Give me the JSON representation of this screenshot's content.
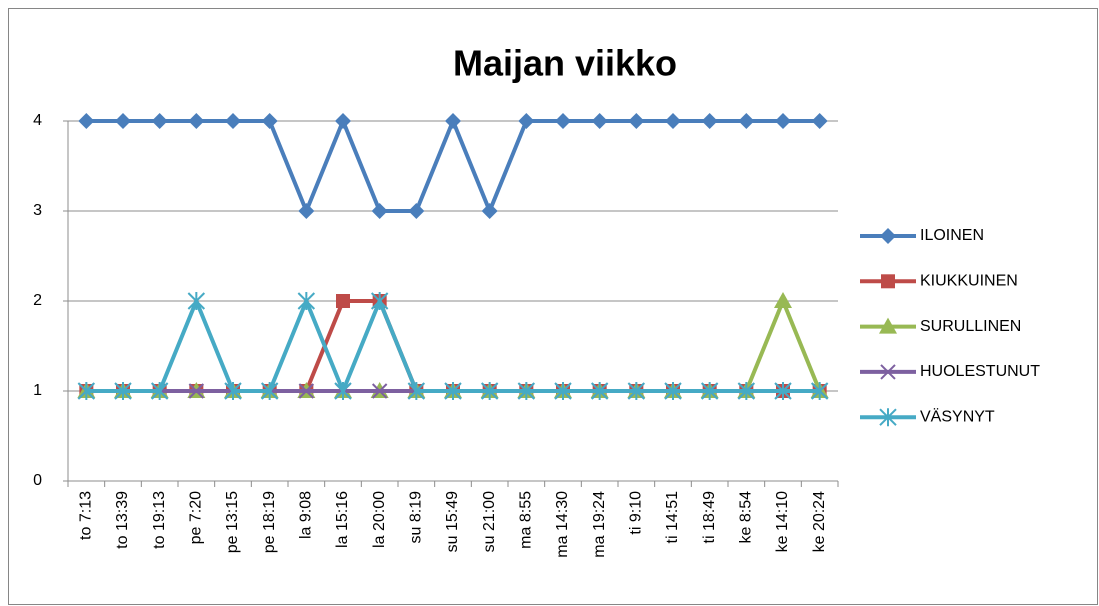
{
  "chart_data": {
    "type": "line",
    "title": "Maijan viikko",
    "categories": [
      "to 7:13",
      "to 13:39",
      "to 19:13",
      "pe 7:20",
      "pe 13:15",
      "pe 18:19",
      "la 9:08",
      "la 15:16",
      "la 20:00",
      "su 8:19",
      "su 15:49",
      "su 21:00",
      "ma 8:55",
      "ma 14:30",
      "ma 19:24",
      "ti 9:10",
      "ti 14:51",
      "ti 18:49",
      "ke 8:54",
      "ke 14:10",
      "ke 20:24"
    ],
    "series": [
      {
        "name": "ILOINEN",
        "color": "#4a7ebb",
        "marker": "diamond",
        "values": [
          4,
          4,
          4,
          4,
          4,
          4,
          3,
          4,
          3,
          3,
          4,
          3,
          4,
          4,
          4,
          4,
          4,
          4,
          4,
          4,
          4
        ]
      },
      {
        "name": "KIUKKUINEN",
        "color": "#be4b48",
        "marker": "square",
        "values": [
          1,
          1,
          1,
          1,
          1,
          1,
          1,
          2,
          2,
          1,
          1,
          1,
          1,
          1,
          1,
          1,
          1,
          1,
          1,
          1,
          1
        ]
      },
      {
        "name": "SURULLINEN",
        "color": "#98b954",
        "marker": "triangle",
        "values": [
          1,
          1,
          1,
          1,
          1,
          1,
          1,
          1,
          1,
          1,
          1,
          1,
          1,
          1,
          1,
          1,
          1,
          1,
          1,
          2,
          1
        ]
      },
      {
        "name": "HUOLESTUNUT",
        "color": "#7d60a0",
        "marker": "x",
        "values": [
          1,
          1,
          1,
          1,
          1,
          1,
          1,
          1,
          1,
          1,
          1,
          1,
          1,
          1,
          1,
          1,
          1,
          1,
          1,
          1,
          1
        ]
      },
      {
        "name": "VÄSYNYT",
        "color": "#46aac5",
        "marker": "star",
        "values": [
          1,
          1,
          1,
          2,
          1,
          1,
          2,
          1,
          2,
          1,
          1,
          1,
          1,
          1,
          1,
          1,
          1,
          1,
          1,
          1,
          1
        ]
      }
    ],
    "ylim": [
      0,
      4
    ],
    "yticks": [
      0,
      1,
      2,
      3,
      4
    ],
    "grid": true,
    "legend": "right"
  }
}
